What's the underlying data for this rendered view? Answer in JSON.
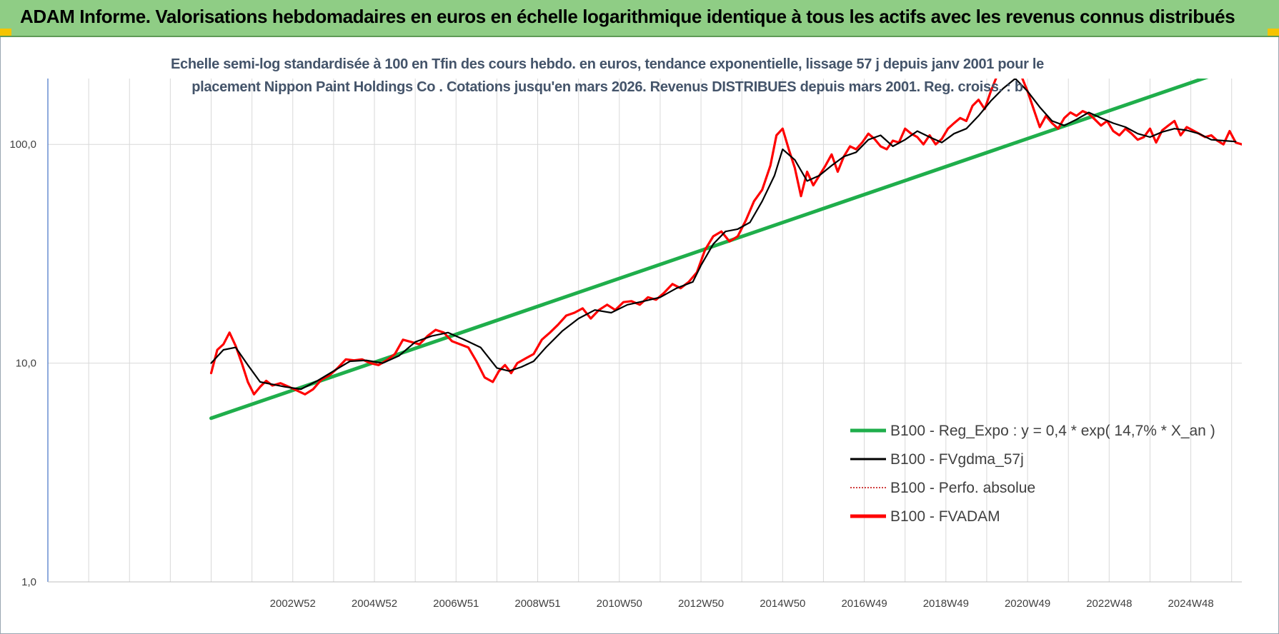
{
  "header": {
    "title": "ADAM Informe. Valorisations hebdomadaires en euros en échelle logarithmique identique à tous les actifs avec les revenus connus distribués"
  },
  "chart_data": {
    "type": "line",
    "title": "Echelle semi-log standardisée à 100 en Tfin des cours hebdo. en euros, tendance exponentielle, lissage 57 j depuis janv 2001 pour le placement Nippon Paint Holdings Co . Cotations jusqu'en mars 2026. Revenus DISTRIBUES depuis mars 2001. Reg. croiss. : b",
    "title_lines": [
      "Echelle semi-log standardisée à 100 en Tfin des cours hebdo. en euros, tendance exponentielle, lissage 57 j depuis janv 2001 pour le",
      "placement Nippon Paint Holdings Co . Cotations jusqu'en mars 2026. Revenus DISTRIBUES depuis mars 2001. Reg. croiss. : b"
    ],
    "x_scale": "time (years)",
    "y_scale": "log10",
    "ylim": [
      1,
      200
    ],
    "xlim": [
      1997.0,
      2026.25
    ],
    "y_ticks": [
      1,
      10,
      100
    ],
    "y_tick_labels": [
      "1,0",
      "10,0",
      "100,0"
    ],
    "x_tick_labels": [
      "2002W52",
      "2004W52",
      "2006W51",
      "2008W51",
      "2010W50",
      "2012W50",
      "2014W50",
      "2016W49",
      "2018W49",
      "2020W49",
      "2022W48",
      "2024W48"
    ],
    "x_tick_values": [
      2003.0,
      2005.0,
      2007.0,
      2009.0,
      2011.0,
      2013.0,
      2015.0,
      2017.0,
      2019.0,
      2021.0,
      2023.0,
      2025.0
    ],
    "grid": true,
    "legend_position": "bottom-right",
    "colors": {
      "regression": "#1fae4b",
      "smoothed": "#000000",
      "perf": "#c00000",
      "fvadam": "#ff0000",
      "grid": "#d9d9d9",
      "axis": "#4472c4"
    },
    "series": [
      {
        "name": "B100 - Reg_Expo : y = 0,4 * exp( 14,7% *  X_an )",
        "style": "regression",
        "x": [
          2001.0,
          2026.25
        ],
        "y": [
          5.6,
          230
        ]
      },
      {
        "name": "B100 - FVgdma_57j",
        "style": "smoothed",
        "x": [
          2001.0,
          2001.3,
          2001.6,
          2001.9,
          2002.2,
          2002.5,
          2002.8,
          2003.2,
          2003.6,
          2004.0,
          2004.4,
          2004.8,
          2005.2,
          2005.6,
          2006.0,
          2006.4,
          2006.8,
          2007.2,
          2007.6,
          2008.0,
          2008.3,
          2008.6,
          2008.9,
          2009.2,
          2009.6,
          2010.0,
          2010.4,
          2010.8,
          2011.2,
          2011.6,
          2012.0,
          2012.4,
          2012.8,
          2013.0,
          2013.3,
          2013.6,
          2013.9,
          2014.2,
          2014.5,
          2014.8,
          2015.0,
          2015.3,
          2015.6,
          2015.9,
          2016.2,
          2016.5,
          2016.8,
          2017.1,
          2017.4,
          2017.7,
          2018.0,
          2018.3,
          2018.6,
          2018.9,
          2019.2,
          2019.5,
          2019.8,
          2020.1,
          2020.4,
          2020.7,
          2021.0,
          2021.3,
          2021.6,
          2021.9,
          2022.2,
          2022.5,
          2022.8,
          2023.1,
          2023.4,
          2023.7,
          2024.0,
          2024.3,
          2024.6,
          2024.9,
          2025.2,
          2025.5,
          2025.8,
          2026.1
        ],
        "y": [
          10.0,
          11.5,
          11.8,
          9.8,
          8.2,
          8.0,
          7.8,
          7.6,
          8.3,
          9.2,
          10.2,
          10.3,
          10.0,
          10.8,
          12.5,
          13.3,
          13.8,
          12.8,
          11.8,
          9.5,
          9.2,
          9.6,
          10.2,
          11.8,
          14.0,
          16.0,
          17.5,
          17.0,
          18.5,
          19.2,
          20.0,
          22.0,
          23.5,
          28.0,
          35.0,
          40.0,
          41.0,
          44.0,
          55.0,
          72.0,
          95.0,
          85.0,
          68.0,
          72.0,
          80.0,
          88.0,
          92.0,
          105.0,
          110.0,
          98.0,
          105.0,
          115.0,
          108.0,
          102.0,
          112.0,
          118.0,
          135.0,
          158.0,
          180.0,
          200.0,
          175.0,
          148.0,
          128.0,
          122.0,
          130.0,
          140.0,
          132.0,
          125.0,
          120.0,
          112.0,
          108.0,
          114.0,
          118.0,
          116.0,
          112.0,
          105.0,
          104.0,
          103.0
        ]
      },
      {
        "name": "B100 - Perfo. absolue",
        "style": "perf",
        "x": [],
        "y": []
      },
      {
        "name": "B100 - FVADAM",
        "style": "fvadam",
        "x": [
          2001.0,
          2001.15,
          2001.3,
          2001.45,
          2001.6,
          2001.75,
          2001.9,
          2002.05,
          2002.2,
          2002.35,
          2002.5,
          2002.7,
          2002.9,
          2003.1,
          2003.3,
          2003.5,
          2003.7,
          2003.9,
          2004.1,
          2004.3,
          2004.5,
          2004.7,
          2004.9,
          2005.1,
          2005.3,
          2005.5,
          2005.7,
          2005.9,
          2006.1,
          2006.3,
          2006.5,
          2006.7,
          2006.9,
          2007.1,
          2007.3,
          2007.5,
          2007.7,
          2007.9,
          2008.05,
          2008.2,
          2008.35,
          2008.5,
          2008.7,
          2008.9,
          2009.1,
          2009.3,
          2009.5,
          2009.7,
          2009.9,
          2010.1,
          2010.3,
          2010.5,
          2010.7,
          2010.9,
          2011.1,
          2011.3,
          2011.5,
          2011.7,
          2011.9,
          2012.1,
          2012.3,
          2012.5,
          2012.7,
          2012.9,
          2013.1,
          2013.3,
          2013.5,
          2013.7,
          2013.9,
          2014.1,
          2014.3,
          2014.5,
          2014.7,
          2014.85,
          2015.0,
          2015.15,
          2015.3,
          2015.45,
          2015.6,
          2015.75,
          2015.9,
          2016.05,
          2016.2,
          2016.35,
          2016.5,
          2016.65,
          2016.8,
          2016.95,
          2017.1,
          2017.25,
          2017.4,
          2017.55,
          2017.7,
          2017.85,
          2018.0,
          2018.15,
          2018.3,
          2018.45,
          2018.6,
          2018.75,
          2018.9,
          2019.05,
          2019.2,
          2019.35,
          2019.5,
          2019.65,
          2019.8,
          2019.95,
          2020.1,
          2020.25,
          2020.4,
          2020.55,
          2020.7,
          2020.85,
          2021.0,
          2021.15,
          2021.3,
          2021.45,
          2021.6,
          2021.75,
          2021.9,
          2022.05,
          2022.2,
          2022.35,
          2022.5,
          2022.65,
          2022.8,
          2022.95,
          2023.1,
          2023.25,
          2023.4,
          2023.55,
          2023.7,
          2023.85,
          2024.0,
          2024.15,
          2024.3,
          2024.45,
          2024.6,
          2024.75,
          2024.9,
          2025.05,
          2025.2,
          2025.35,
          2025.5,
          2025.65,
          2025.8,
          2025.95,
          2026.1,
          2026.25
        ],
        "y": [
          9.0,
          11.5,
          12.2,
          13.8,
          12.0,
          10.0,
          8.2,
          7.2,
          7.8,
          8.3,
          7.9,
          8.1,
          7.8,
          7.5,
          7.2,
          7.6,
          8.4,
          8.8,
          9.5,
          10.4,
          10.3,
          10.4,
          10.0,
          9.8,
          10.3,
          11.0,
          12.8,
          12.5,
          12.2,
          13.3,
          14.2,
          13.8,
          12.6,
          12.2,
          11.8,
          10.2,
          8.6,
          8.2,
          9.2,
          9.8,
          9.0,
          10.0,
          10.5,
          11.0,
          12.8,
          13.8,
          15.0,
          16.5,
          17.0,
          17.8,
          16.0,
          17.5,
          18.5,
          17.5,
          19.0,
          19.2,
          18.5,
          20.0,
          19.5,
          21.0,
          23.0,
          22.0,
          23.5,
          26.0,
          33.0,
          38.0,
          40.0,
          36.0,
          38.0,
          45.0,
          55.0,
          62.0,
          80.0,
          110.0,
          118.0,
          95.0,
          78.0,
          58.0,
          75.0,
          65.0,
          72.0,
          80.0,
          90.0,
          75.0,
          88.0,
          98.0,
          95.0,
          102.0,
          112.0,
          106.0,
          98.0,
          95.0,
          104.0,
          102.0,
          118.0,
          112.0,
          108.0,
          100.0,
          110.0,
          100.0,
          106.0,
          118.0,
          125.0,
          132.0,
          128.0,
          150.0,
          160.0,
          145.0,
          175.0,
          205.0,
          220.0,
          240.0,
          215.0,
          205.0,
          175.0,
          145.0,
          120.0,
          135.0,
          125.0,
          118.0,
          132.0,
          140.0,
          135.0,
          142.0,
          138.0,
          130.0,
          122.0,
          128.0,
          115.0,
          110.0,
          118.0,
          112.0,
          105.0,
          108.0,
          118.0,
          102.0,
          116.0,
          122.0,
          128.0,
          110.0,
          120.0,
          116.0,
          112.0,
          108.0,
          110.0,
          104.0,
          100.0,
          115.0,
          102.0,
          100.0
        ]
      }
    ]
  }
}
